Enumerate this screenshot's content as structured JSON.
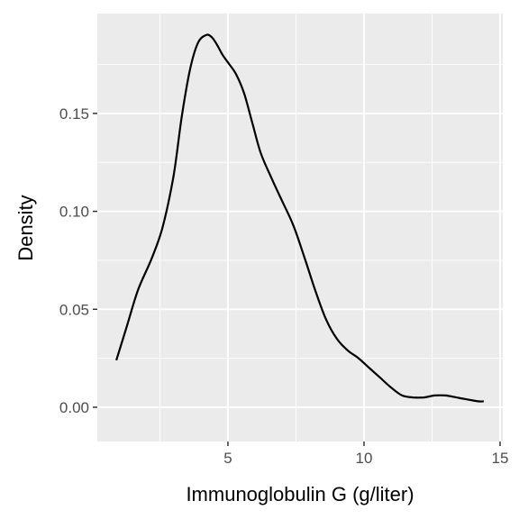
{
  "chart_data": {
    "type": "line",
    "title": "",
    "xlabel": "Immunoglobulin G (g/liter)",
    "ylabel": "Density",
    "xlim": [
      0.2,
      15.1
    ],
    "ylim": [
      -0.0175,
      0.201
    ],
    "x_ticks": [
      5,
      10,
      15
    ],
    "x_tick_labels": [
      "5",
      "10",
      "15"
    ],
    "x_minor_ticks": [
      2.5,
      7.5,
      12.5
    ],
    "y_ticks": [
      0.0,
      0.05,
      0.1,
      0.15
    ],
    "y_tick_labels": [
      "0.00",
      "0.05",
      "0.10",
      "0.15"
    ],
    "y_minor_ticks": [
      0.025,
      0.075,
      0.125,
      0.175
    ],
    "grid": true,
    "colors": {
      "panel": "#ebebeb",
      "grid": "#ffffff",
      "line": "#000000"
    },
    "series": [
      {
        "x": [
          0.9,
          1.3,
          1.7,
          2.2,
          2.6,
          3.0,
          3.3,
          3.6,
          3.9,
          4.2,
          4.4,
          4.6,
          4.8,
          5.0,
          5.3,
          5.6,
          5.9,
          6.2,
          6.6,
          7.0,
          7.4,
          7.8,
          8.2,
          8.6,
          9.0,
          9.4,
          9.8,
          10.2,
          10.6,
          11.0,
          11.4,
          11.8,
          12.2,
          12.6,
          13.0,
          13.4,
          13.8,
          14.2,
          14.4
        ],
        "y": [
          0.024,
          0.042,
          0.06,
          0.076,
          0.092,
          0.118,
          0.148,
          0.172,
          0.186,
          0.19,
          0.189,
          0.185,
          0.18,
          0.176,
          0.17,
          0.16,
          0.145,
          0.13,
          0.117,
          0.105,
          0.093,
          0.077,
          0.06,
          0.045,
          0.035,
          0.029,
          0.025,
          0.02,
          0.015,
          0.01,
          0.006,
          0.005,
          0.005,
          0.006,
          0.006,
          0.005,
          0.004,
          0.003,
          0.003
        ]
      }
    ]
  }
}
